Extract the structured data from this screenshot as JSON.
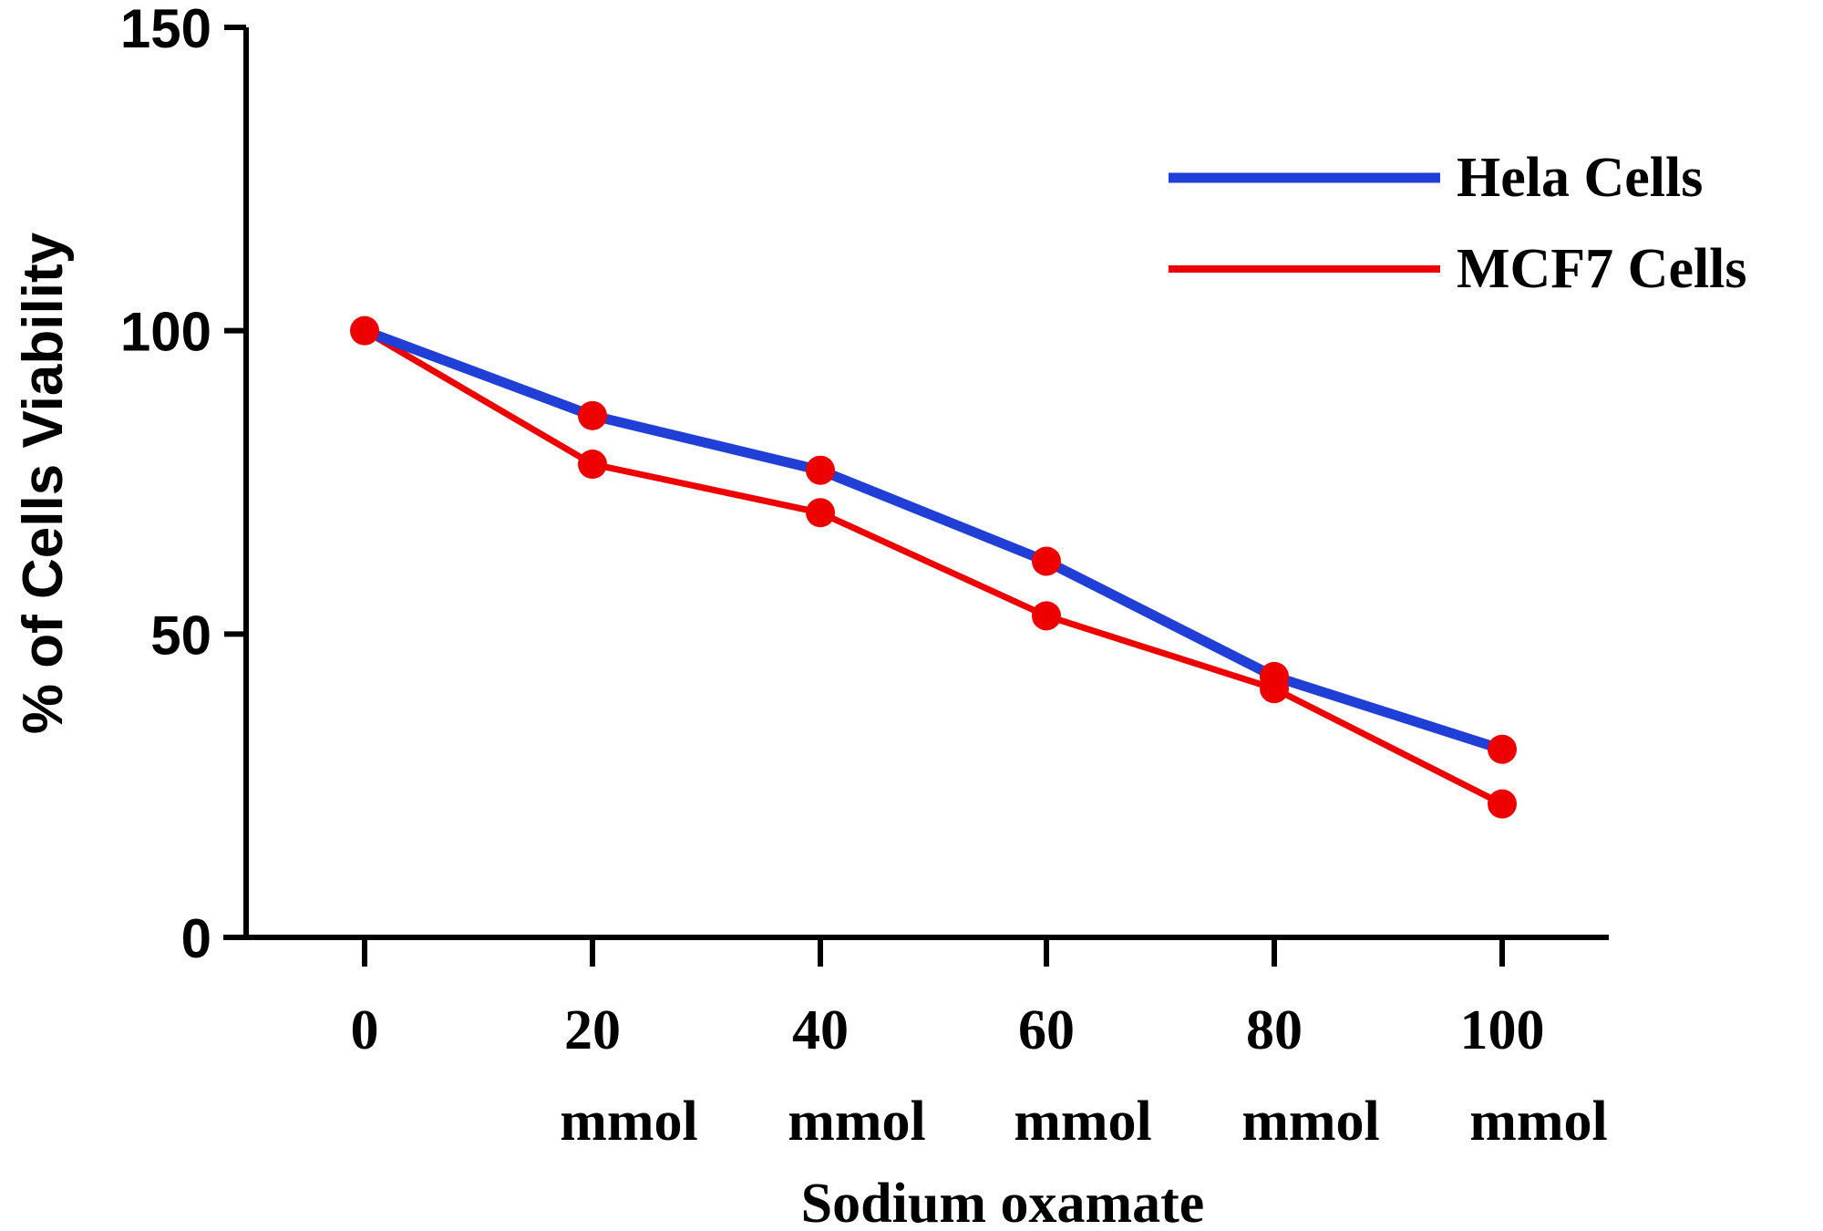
{
  "chart_data": {
    "type": "line",
    "title": "",
    "xlabel": "Sodium oxamate",
    "ylabel": "% of Cells Viability",
    "categories": [
      {
        "value": "0",
        "unit": ""
      },
      {
        "value": "20",
        "unit": "mmol"
      },
      {
        "value": "40",
        "unit": "mmol"
      },
      {
        "value": "60",
        "unit": "mmol"
      },
      {
        "value": "80",
        "unit": "mmol"
      },
      {
        "value": "100",
        "unit": "mmol"
      }
    ],
    "x": [
      0,
      20,
      40,
      60,
      80,
      100
    ],
    "ylim": [
      0,
      150
    ],
    "yticks": [
      0,
      50,
      100,
      150
    ],
    "grid": false,
    "legend_position": "top-right",
    "series": [
      {
        "name": "Hela Cells",
        "color": "#1f3fd6",
        "marker_color": "#ee0000",
        "values": [
          100,
          86,
          77,
          62,
          43,
          31
        ]
      },
      {
        "name": "MCF7 Cells",
        "color": "#ee0000",
        "marker_color": "#ee0000",
        "values": [
          100,
          78,
          70,
          53,
          41,
          22
        ]
      }
    ]
  }
}
